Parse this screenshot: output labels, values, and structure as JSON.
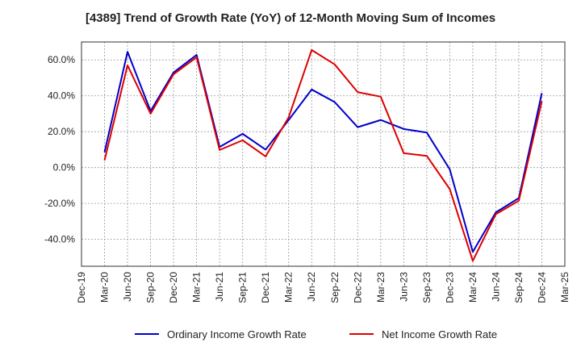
{
  "chart_data": {
    "type": "line",
    "title": "[4389]  Trend of Growth Rate (YoY) of 12-Month Moving Sum of Incomes",
    "categories": [
      "Dec-19",
      "Mar-20",
      "Jun-20",
      "Sep-20",
      "Dec-20",
      "Mar-21",
      "Jun-21",
      "Sep-21",
      "Dec-21",
      "Mar-22",
      "Jun-22",
      "Sep-22",
      "Dec-22",
      "Mar-23",
      "Jun-23",
      "Sep-23",
      "Dec-23",
      "Mar-24",
      "Jun-24",
      "Sep-24",
      "Dec-24",
      "Mar-25"
    ],
    "yticks": [
      "-40.0%",
      "-20.0%",
      "0.0%",
      "20.0%",
      "40.0%",
      "60.0%"
    ],
    "ylim": [
      -55,
      70
    ],
    "grid": true,
    "legend_position": "bottom",
    "series": [
      {
        "name": "Ordinary Income Growth Rate",
        "color": "#0000cc",
        "values": [
          null,
          8.5,
          64.5,
          31.5,
          53,
          62.8,
          11.5,
          18.8,
          10,
          26.5,
          43.5,
          36.5,
          22.5,
          26.5,
          21.5,
          19.5,
          -1,
          -47,
          -25,
          -17,
          41.5,
          null
        ]
      },
      {
        "name": "Net Income Growth Rate",
        "color": "#dd0000",
        "values": [
          null,
          4,
          57,
          30,
          52,
          61.5,
          9.8,
          15.2,
          6.2,
          28,
          65.5,
          57.5,
          42,
          39.5,
          8,
          6.5,
          -12,
          -52,
          -26,
          -18.5,
          37,
          null
        ]
      }
    ]
  }
}
